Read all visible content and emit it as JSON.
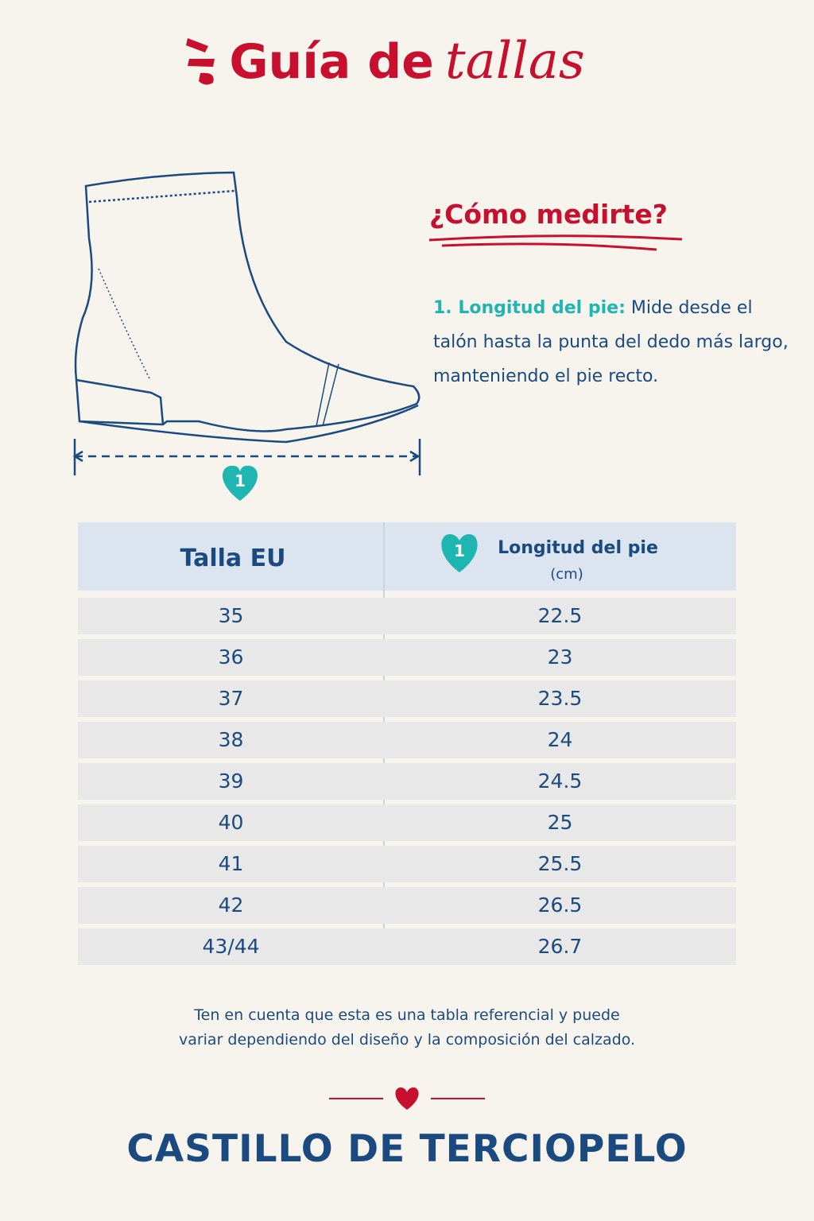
{
  "header": {
    "title_main": "Guía de",
    "title_accent": "tallas"
  },
  "how_to": {
    "heading": "¿Cómo medirte?",
    "step_label": "1. Longitud del pie:",
    "step_text": "Mide desde el talón hasta la punta del dedo más largo, manteniendo el pie recto."
  },
  "diagram": {
    "marker": "1"
  },
  "table": {
    "headers": {
      "size": "Talla EU",
      "length": "Longitud del pie",
      "length_unit": "(cm)",
      "length_marker": "1"
    },
    "rows": [
      [
        "35",
        "22.5"
      ],
      [
        "36",
        "23"
      ],
      [
        "37",
        "23.5"
      ],
      [
        "38",
        "24"
      ],
      [
        "39",
        "24.5"
      ],
      [
        "40",
        "25"
      ],
      [
        "41",
        "25.5"
      ],
      [
        "42",
        "26.5"
      ],
      [
        "43/44",
        "26.7"
      ]
    ]
  },
  "note": [
    "Ten en cuenta que esta es una tabla referencial y puede",
    "variar dependiendo del diseño y la composición del calzado."
  ],
  "footer": {
    "brand": "CASTILLO DE TERCIOPELO"
  }
}
